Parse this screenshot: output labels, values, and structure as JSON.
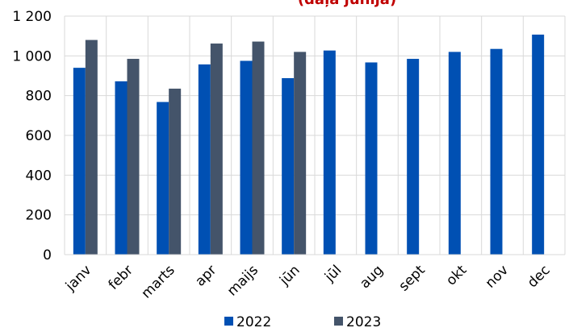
{
  "chart_data": {
    "type": "bar",
    "title_fragment": "(daļa jūnijā)",
    "categories": [
      "janv",
      "febr",
      "marts",
      "apr",
      "maijs",
      "jūn",
      "jūl",
      "aug",
      "sept",
      "okt",
      "nov",
      "dec"
    ],
    "series": [
      {
        "name": "2022",
        "color": "#0050b3",
        "values": [
          940,
          872,
          768,
          957,
          975,
          888,
          1027,
          967,
          985,
          1020,
          1035,
          1107
        ]
      },
      {
        "name": "2023",
        "color": "#44546a",
        "values": [
          1080,
          985,
          835,
          1062,
          1072,
          1020,
          null,
          null,
          null,
          null,
          null,
          null
        ]
      }
    ],
    "y_ticks": [
      "0",
      "200",
      "400",
      "600",
      "800",
      "1 000",
      "1 200"
    ],
    "ylim": [
      0,
      1200
    ],
    "grid": true,
    "legend": "bottom",
    "title_color": "#c00000"
  }
}
